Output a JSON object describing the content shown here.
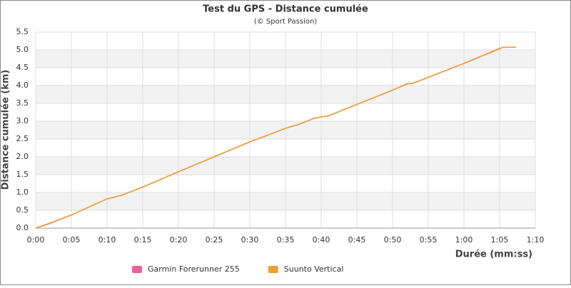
{
  "chart_data": {
    "type": "line",
    "title": "Test du GPS - Distance cumulée",
    "subtitle": "(© Sport Passion)",
    "xlabel": "Durée (mm:ss)",
    "ylabel": "Distance cumulée (km)",
    "x": [
      0,
      2,
      5,
      10,
      12,
      15,
      20,
      25,
      30,
      32,
      35,
      37,
      39,
      40,
      41,
      45,
      50,
      52,
      53,
      55,
      60,
      65,
      65.5,
      67.3
    ],
    "series": [
      {
        "name": "Garmin Forerunner 255",
        "color": "#e8609a",
        "values": [
          0.0,
          0.14,
          0.37,
          0.82,
          0.92,
          1.15,
          1.58,
          2.0,
          2.42,
          2.57,
          2.8,
          2.92,
          3.08,
          3.12,
          3.15,
          3.47,
          3.87,
          4.05,
          4.07,
          4.23,
          4.62,
          5.04,
          5.07,
          5.08
        ]
      },
      {
        "name": "Suunto Vertical",
        "color": "#f0a030",
        "values": [
          0.0,
          0.13,
          0.37,
          0.82,
          0.92,
          1.15,
          1.58,
          2.0,
          2.42,
          2.57,
          2.8,
          2.92,
          3.08,
          3.12,
          3.15,
          3.47,
          3.87,
          4.04,
          4.07,
          4.23,
          4.62,
          5.03,
          5.07,
          5.08
        ]
      }
    ],
    "xlim": [
      0,
      70
    ],
    "xticks": [
      {
        "value": 0,
        "label": "0:00"
      },
      {
        "value": 5,
        "label": "0:05"
      },
      {
        "value": 10,
        "label": "0:10"
      },
      {
        "value": 15,
        "label": "0:15"
      },
      {
        "value": 20,
        "label": "0:20"
      },
      {
        "value": 25,
        "label": "0:25"
      },
      {
        "value": 30,
        "label": "0:30"
      },
      {
        "value": 35,
        "label": "0:35"
      },
      {
        "value": 40,
        "label": "0:40"
      },
      {
        "value": 45,
        "label": "0:45"
      },
      {
        "value": 50,
        "label": "0:50"
      },
      {
        "value": 55,
        "label": "0:55"
      },
      {
        "value": 60,
        "label": "1:00"
      },
      {
        "value": 65,
        "label": "1:05"
      },
      {
        "value": 70,
        "label": "1:10"
      }
    ],
    "ylim": [
      0,
      5.5
    ],
    "yticks": [
      {
        "value": 0,
        "label": "0.0"
      },
      0.5,
      {
        "value": 1,
        "label": "1.0"
      },
      1.5,
      {
        "value": 2,
        "label": "2.0"
      },
      2.5,
      {
        "value": 3,
        "label": "3.0"
      },
      3.5,
      {
        "value": 4,
        "label": "4.0"
      },
      4.5,
      {
        "value": 5,
        "label": "5.0"
      },
      5.5
    ],
    "grid": true
  }
}
